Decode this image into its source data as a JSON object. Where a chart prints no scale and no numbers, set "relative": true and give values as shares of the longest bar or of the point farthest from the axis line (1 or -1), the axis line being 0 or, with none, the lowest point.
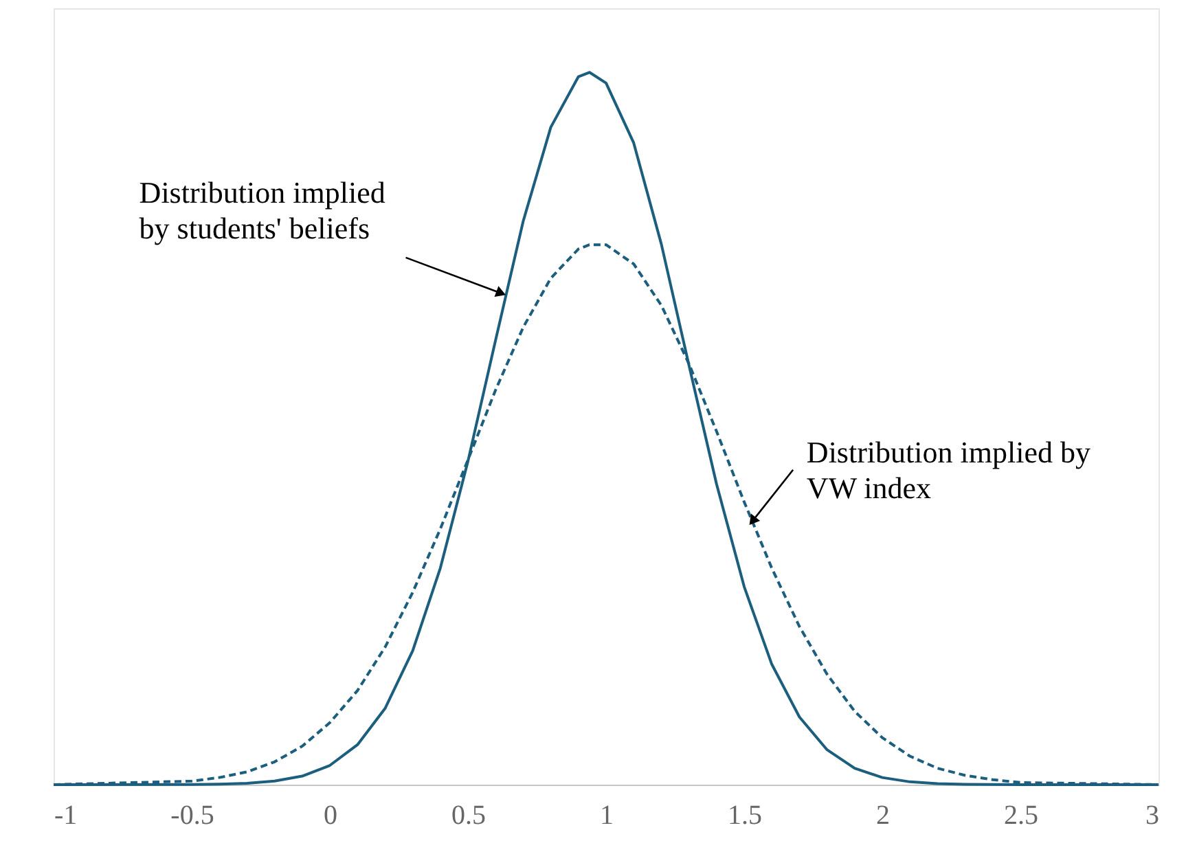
{
  "chart_data": {
    "type": "line",
    "relative": true,
    "marker": "none",
    "x": [
      -1,
      -0.5,
      -0.4,
      -0.3,
      -0.2,
      -0.1,
      0,
      0.1,
      0.2,
      0.3,
      0.4,
      0.5,
      0.6,
      0.7,
      0.8,
      0.9,
      0.94,
      1.0,
      1.1,
      1.2,
      1.3,
      1.4,
      1.5,
      1.6,
      1.7,
      1.8,
      1.9,
      2.0,
      2.1,
      2.2,
      2.3,
      2.4,
      2.5,
      3
    ],
    "xlim": [
      -1,
      3
    ],
    "xticks": [
      -1,
      -0.5,
      0,
      0.5,
      1,
      1.5,
      2,
      2.5,
      3
    ],
    "series": [
      {
        "color": "#1b5e7e",
        "line_style": "solid",
        "values": [
          0,
          0.0002,
          0.0007,
          0.0019,
          0.005,
          0.012,
          0.027,
          0.056,
          0.107,
          0.188,
          0.304,
          0.454,
          0.624,
          0.791,
          0.923,
          0.994,
          1,
          0.985,
          0.901,
          0.759,
          0.589,
          0.422,
          0.278,
          0.169,
          0.095,
          0.049,
          0.023,
          0.01,
          0.004,
          0.0015,
          0.0005,
          0.0002,
          0.0001,
          0
        ]
      },
      {
        "color": "#1b5e7e",
        "line_style": "dashed",
        "values": [
          0.0001,
          0.005,
          0.01,
          0.018,
          0.032,
          0.054,
          0.087,
          0.132,
          0.193,
          0.27,
          0.359,
          0.456,
          0.554,
          0.642,
          0.711,
          0.752,
          0.758,
          0.758,
          0.731,
          0.673,
          0.591,
          0.496,
          0.397,
          0.304,
          0.222,
          0.155,
          0.103,
          0.066,
          0.04,
          0.023,
          0.013,
          0.007,
          0.003,
          0
        ]
      }
    ],
    "annotations": [
      {
        "text": "Distribution implied\nby students' beliefs",
        "x": 0.62,
        "y": 0.69
      },
      {
        "text": "Distribution implied by\nVW index",
        "x": 1.53,
        "y": 0.37
      }
    ]
  }
}
